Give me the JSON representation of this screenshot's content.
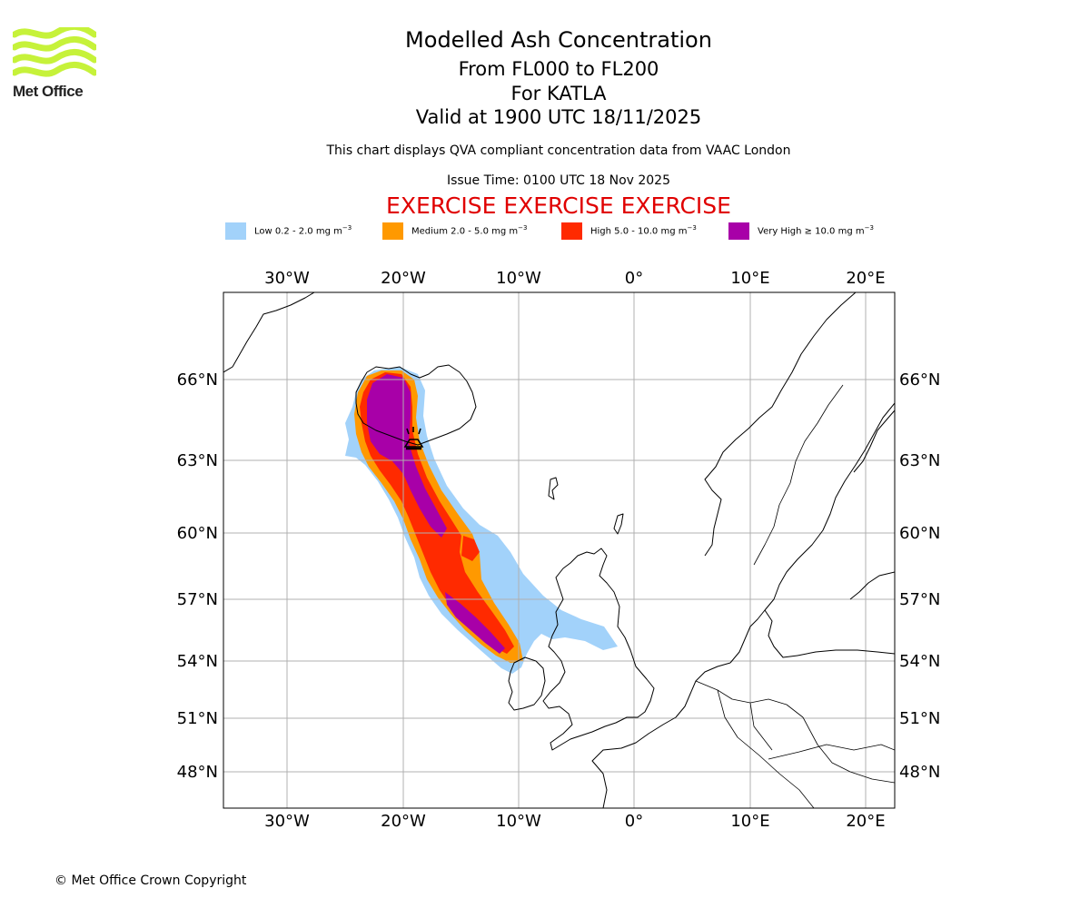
{
  "logo": {
    "text": "Met Office",
    "color": "#c6f23a",
    "icon": "met-office-wave-logo"
  },
  "title": {
    "main": "Modelled Ash Concentration",
    "levels": "From FL000 to FL200",
    "volcano": "For KATLA",
    "valid": "Valid at 1900 UTC 18/11/2025"
  },
  "description": "This chart displays QVA compliant concentration data from VAAC London",
  "issue_time": "Issue Time: 0100 UTC 18 Nov 2025",
  "exercise_banner": "EXERCISE EXERCISE EXERCISE",
  "legend": [
    {
      "label": "Low 0.2 - 2.0 mg m",
      "exp": "−3",
      "color": "#a2d2fa"
    },
    {
      "label": "Medium 2.0 - 5.0 mg m",
      "exp": "−3",
      "color": "#ff9900"
    },
    {
      "label": "High 5.0 - 10.0 mg m",
      "exp": "−3",
      "color": "#ff2a00"
    },
    {
      "label": "Very High  ≥  10.0 mg m",
      "exp": "−3",
      "color": "#a800a8"
    }
  ],
  "map": {
    "lon_ticks": [
      {
        "value": -30,
        "label": "30°W"
      },
      {
        "value": -20,
        "label": "20°W"
      },
      {
        "value": -10,
        "label": "10°W"
      },
      {
        "value": 0,
        "label": "0°"
      },
      {
        "value": 10,
        "label": "10°E"
      },
      {
        "value": 20,
        "label": "20°E"
      }
    ],
    "lat_ticks": [
      {
        "value": 66,
        "label": "66°N"
      },
      {
        "value": 63,
        "label": "63°N"
      },
      {
        "value": 60,
        "label": "60°N"
      },
      {
        "value": 57,
        "label": "57°N"
      },
      {
        "value": 54,
        "label": "54°N"
      },
      {
        "value": 51,
        "label": "51°N"
      },
      {
        "value": 48,
        "label": "48°N"
      }
    ],
    "volcano_icon": "volcano-icon"
  },
  "copyright": "© Met Office Crown Copyright"
}
